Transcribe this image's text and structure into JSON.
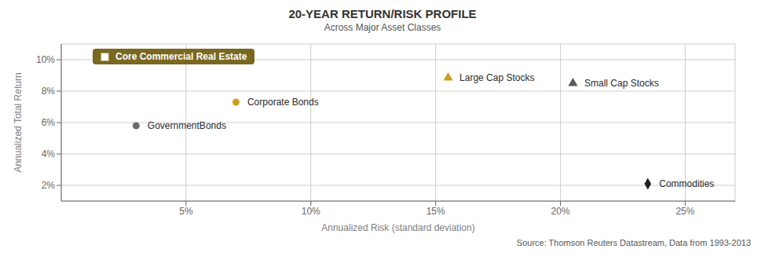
{
  "chart_data": {
    "type": "scatter",
    "title": "20-YEAR RETURN/RISK PROFILE",
    "subtitle": "Across Major Asset Classes",
    "x_label": "Annualized Risk (standard deviation)",
    "y_label": "Annualized Total Return",
    "xlim": [
      0,
      27
    ],
    "ylim": [
      1,
      11
    ],
    "xticks": [
      {
        "value": 5,
        "label": "5%"
      },
      {
        "value": 10,
        "label": "10%"
      },
      {
        "value": 15,
        "label": "15%"
      },
      {
        "value": 20,
        "label": "20%"
      },
      {
        "value": 25,
        "label": "25%"
      }
    ],
    "yticks": [
      {
        "value": 2,
        "label": "2%"
      },
      {
        "value": 4,
        "label": "4%"
      },
      {
        "value": 6,
        "label": "6%"
      },
      {
        "value": 8,
        "label": "8%"
      },
      {
        "value": 10,
        "label": "10%"
      }
    ],
    "grid": true,
    "series": [
      {
        "name": "GovernmentBonds",
        "color": "#6b6b6b",
        "marker": "circle",
        "x": [
          3.0
        ],
        "values": [
          5.8
        ]
      },
      {
        "name": "Corporate Bonds",
        "color": "#c9a020",
        "marker": "circle",
        "x": [
          7.0
        ],
        "values": [
          7.3
        ]
      },
      {
        "name": "Large Cap Stocks",
        "color": "#c9a020",
        "marker": "triangle",
        "x": [
          15.5
        ],
        "values": [
          8.85
        ]
      },
      {
        "name": "Small Cap Stocks",
        "color": "#5a5a5a",
        "marker": "triangle",
        "x": [
          20.5
        ],
        "values": [
          8.5
        ]
      },
      {
        "name": "Commodities",
        "color": "#222222",
        "marker": "diamond",
        "x": [
          23.5
        ],
        "values": [
          2.1
        ]
      }
    ],
    "annotations": [
      {
        "text": "Core Commercial Real Estate",
        "color": "#7a6820"
      },
      {
        "text": "Source: Thomson Reuters Datastream, Data from 1993-2013"
      }
    ]
  }
}
